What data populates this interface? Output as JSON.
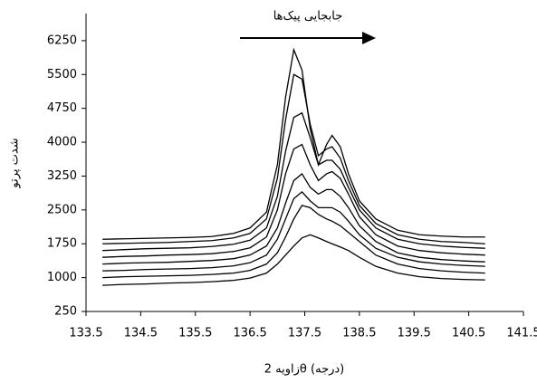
{
  "chart_data": {
    "type": "line",
    "annotation": "جابجایی پیک‌ها",
    "xlabel": "زاویه 2θ (درجه)",
    "ylabel": "شدت پرتو",
    "x": [
      133.8,
      134.2,
      134.6,
      135.0,
      135.4,
      135.8,
      136.2,
      136.5,
      136.8,
      137.0,
      137.15,
      137.3,
      137.45,
      137.6,
      137.75,
      137.9,
      138.0,
      138.15,
      138.3,
      138.5,
      138.8,
      139.2,
      139.6,
      140.0,
      140.4,
      140.8
    ],
    "series": [
      {
        "color": "#000000",
        "values": [
          830,
          850,
          860,
          880,
          890,
          910,
          940,
          990,
          1100,
          1300,
          1500,
          1700,
          1880,
          1950,
          1880,
          1800,
          1750,
          1680,
          1600,
          1450,
          1250,
          1100,
          1020,
          980,
          960,
          950
        ]
      },
      {
        "color": "#000000",
        "values": [
          1000,
          1020,
          1030,
          1040,
          1050,
          1070,
          1100,
          1160,
          1300,
          1550,
          1900,
          2300,
          2600,
          2550,
          2400,
          2300,
          2250,
          2150,
          2000,
          1800,
          1500,
          1300,
          1200,
          1150,
          1120,
          1100
        ]
      },
      {
        "color": "#000000",
        "values": [
          1150,
          1160,
          1180,
          1190,
          1200,
          1220,
          1260,
          1330,
          1500,
          1850,
          2300,
          2750,
          2900,
          2700,
          2550,
          2550,
          2550,
          2450,
          2250,
          1950,
          1650,
          1450,
          1350,
          1300,
          1270,
          1250
        ]
      },
      {
        "color": "#000000",
        "values": [
          1300,
          1320,
          1330,
          1340,
          1360,
          1380,
          1420,
          1500,
          1700,
          2100,
          2650,
          3150,
          3300,
          3000,
          2850,
          2950,
          2950,
          2800,
          2550,
          2150,
          1800,
          1550,
          1450,
          1400,
          1370,
          1350
        ]
      },
      {
        "color": "#000000",
        "values": [
          1450,
          1470,
          1480,
          1500,
          1510,
          1530,
          1580,
          1660,
          1900,
          2500,
          3300,
          3850,
          3950,
          3500,
          3150,
          3300,
          3350,
          3200,
          2850,
          2350,
          1950,
          1700,
          1600,
          1550,
          1520,
          1500
        ]
      },
      {
        "color": "#000000",
        "values": [
          1600,
          1620,
          1640,
          1650,
          1660,
          1690,
          1740,
          1830,
          2100,
          2800,
          3800,
          4550,
          4650,
          4100,
          3500,
          3600,
          3600,
          3400,
          3000,
          2500,
          2100,
          1850,
          1750,
          1700,
          1670,
          1650
        ]
      },
      {
        "color": "#000000",
        "values": [
          1750,
          1760,
          1770,
          1780,
          1800,
          1820,
          1880,
          1980,
          2300,
          3200,
          4500,
          5500,
          5400,
          4400,
          3700,
          3850,
          3900,
          3650,
          3150,
          2600,
          2200,
          1950,
          1850,
          1800,
          1780,
          1750
        ]
      },
      {
        "color": "#000000",
        "values": [
          1850,
          1860,
          1870,
          1880,
          1890,
          1910,
          1980,
          2100,
          2450,
          3500,
          5000,
          6050,
          5600,
          4300,
          3500,
          3950,
          4150,
          3900,
          3300,
          2700,
          2300,
          2050,
          1950,
          1920,
          1900,
          1900
        ]
      }
    ],
    "xlim": [
      133.5,
      141.5
    ],
    "xticks": [
      133.5,
      134.5,
      135.5,
      136.5,
      137.5,
      138.5,
      139.5,
      140.5,
      141.5
    ],
    "ylim": [
      250,
      6850
    ],
    "yticks": [
      250,
      1000,
      1750,
      2500,
      3250,
      4000,
      4750,
      5500,
      6250
    ]
  }
}
